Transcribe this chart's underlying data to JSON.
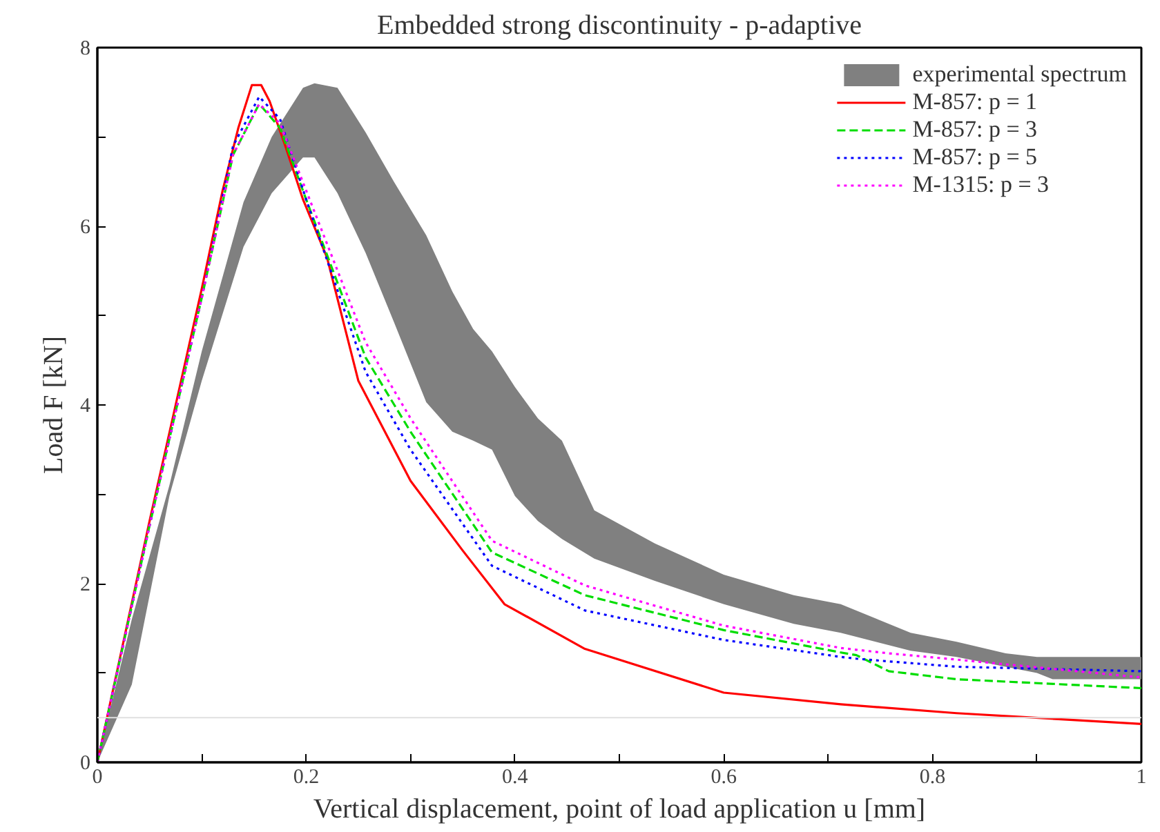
{
  "chart_data": {
    "type": "line",
    "title": "Embedded strong discontinuity - p-adaptive",
    "xlabel": "Vertical displacement, point of load application u [mm]",
    "ylabel": "Load F [kN]",
    "xlim": [
      0,
      1
    ],
    "ylim": [
      0,
      8
    ],
    "xticks": [
      0,
      {
        "value": 0.1,
        "label": null
      },
      0.2,
      {
        "value": 0.3,
        "label": null
      },
      0.4,
      {
        "value": 0.5,
        "label": null
      },
      0.6,
      {
        "value": 0.7,
        "label": null
      },
      0.8,
      {
        "value": 0.9,
        "label": null
      },
      1
    ],
    "yticks": [
      0,
      {
        "value": 1,
        "label": null
      },
      2,
      {
        "value": 3,
        "label": null
      },
      4,
      {
        "value": 5,
        "label": null
      },
      6,
      {
        "value": 7,
        "label": null
      },
      8
    ],
    "grid": false,
    "legend": "top right",
    "ref_lines": [
      {
        "axis": "y",
        "value": 0.5,
        "label": null,
        "color": "#e0e0e0"
      }
    ],
    "series": [
      {
        "name": "experimental spectrum",
        "type": "area",
        "color": "#808080",
        "x": [
          0,
          0.033,
          0.069,
          0.1,
          0.14,
          0.167,
          0.197,
          0.208,
          0.23,
          0.257,
          0.284,
          0.315,
          0.34,
          0.36,
          0.378,
          0.4,
          0.422,
          0.445,
          0.476,
          0.534,
          0.6,
          0.667,
          0.712,
          0.779,
          0.823,
          0.87,
          0.9,
          0.915,
          1
        ],
        "values": [
          null,
          null,
          null,
          null,
          null,
          null,
          null,
          null,
          null,
          null,
          null,
          null,
          null,
          null,
          null,
          null,
          null,
          null,
          null,
          null,
          null,
          null,
          null,
          null,
          null,
          null,
          null,
          null,
          null
        ],
        "upper": [
          0,
          1.6,
          3.1,
          4.6,
          6.27,
          7.0,
          7.55,
          7.6,
          7.55,
          7.05,
          6.5,
          5.9,
          5.27,
          4.85,
          4.6,
          4.2,
          3.85,
          3.6,
          2.82,
          2.45,
          2.1,
          1.87,
          1.77,
          1.45,
          1.35,
          1.22,
          1.18,
          1.18,
          1.18
        ],
        "lower": [
          0,
          0.87,
          2.98,
          4.27,
          5.77,
          6.37,
          6.77,
          6.77,
          6.37,
          5.7,
          4.93,
          4.03,
          3.7,
          3.6,
          3.5,
          2.98,
          2.7,
          2.5,
          2.28,
          2.03,
          1.77,
          1.55,
          1.45,
          1.25,
          1.18,
          1.07,
          1.0,
          0.93,
          0.93
        ]
      },
      {
        "name": "M-857: p = 1",
        "line_style": "solid",
        "color": "#ff0000",
        "x": [
          0,
          0.025,
          0.05,
          0.075,
          0.1,
          0.12,
          0.135,
          0.148,
          0.157,
          0.165,
          0.18,
          0.197,
          0.22,
          0.25,
          0.3,
          0.35,
          0.39,
          0.467,
          0.6,
          0.712,
          0.823,
          1
        ],
        "values": [
          0,
          1.35,
          2.7,
          4.0,
          5.3,
          6.4,
          7.1,
          7.58,
          7.58,
          7.4,
          6.9,
          6.3,
          5.65,
          4.27,
          3.15,
          2.37,
          1.77,
          1.27,
          0.78,
          0.65,
          0.55,
          0.43
        ]
      },
      {
        "name": "M-857: p = 3",
        "line_style": "dashed",
        "color": "#00dd00",
        "x": [
          0,
          0.05,
          0.1,
          0.13,
          0.155,
          0.175,
          0.2,
          0.257,
          0.3,
          0.378,
          0.467,
          0.6,
          0.712,
          0.727,
          0.758,
          0.823,
          1
        ],
        "values": [
          0,
          2.65,
          5.2,
          6.8,
          7.37,
          7.1,
          6.3,
          4.53,
          3.7,
          2.35,
          1.87,
          1.48,
          1.23,
          1.2,
          1.02,
          0.93,
          0.83
        ]
      },
      {
        "name": "M-857: p = 5",
        "line_style": "dotted",
        "color": "#0000ff",
        "x": [
          0,
          0.05,
          0.1,
          0.13,
          0.155,
          0.175,
          0.2,
          0.257,
          0.3,
          0.378,
          0.467,
          0.6,
          0.712,
          0.727,
          0.758,
          0.823,
          1
        ],
        "values": [
          0,
          2.65,
          5.2,
          6.9,
          7.45,
          7.2,
          6.3,
          4.37,
          3.5,
          2.2,
          1.7,
          1.37,
          1.18,
          1.16,
          1.13,
          1.07,
          1.02
        ]
      },
      {
        "name": "M-1315: p = 3",
        "line_style": "dotted",
        "color": "#ff00ff",
        "x": [
          0,
          0.05,
          0.1,
          0.13,
          0.155,
          0.175,
          0.2,
          0.257,
          0.3,
          0.378,
          0.467,
          0.6,
          0.712,
          0.727,
          0.758,
          0.823,
          1
        ],
        "values": [
          0,
          2.65,
          5.2,
          6.8,
          7.37,
          7.15,
          6.4,
          4.7,
          3.85,
          2.48,
          1.98,
          1.53,
          1.28,
          1.26,
          1.22,
          1.15,
          0.95
        ]
      }
    ]
  }
}
